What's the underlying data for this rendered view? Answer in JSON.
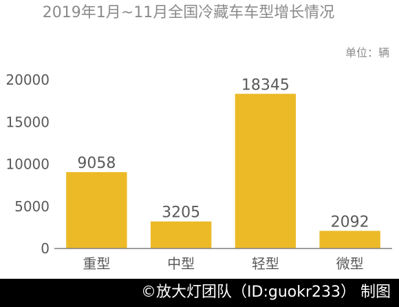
{
  "chart_data": {
    "type": "bar",
    "title": "2019年1月~11月全国冷藏车车型增长情况",
    "unit_label": "单位：辆",
    "categories": [
      "重型",
      "中型",
      "轻型",
      "微型"
    ],
    "values": [
      9058,
      3205,
      18345,
      2092
    ],
    "value_labels": [
      "9058",
      "3205",
      "18345",
      "2092"
    ],
    "yticks": [
      "0",
      "5000",
      "10000",
      "15000",
      "20000"
    ],
    "ylim": [
      0,
      20000
    ],
    "grid": false,
    "legend": "none"
  },
  "colors": {
    "bar": "#ECBA27",
    "text": "#595959",
    "axis": "#7F7F7F",
    "footer_bg": "#000000",
    "footer_text": "#FFFFFF"
  },
  "footer": {
    "credit": "©放大灯团队（ID:guokr233） 制图"
  }
}
